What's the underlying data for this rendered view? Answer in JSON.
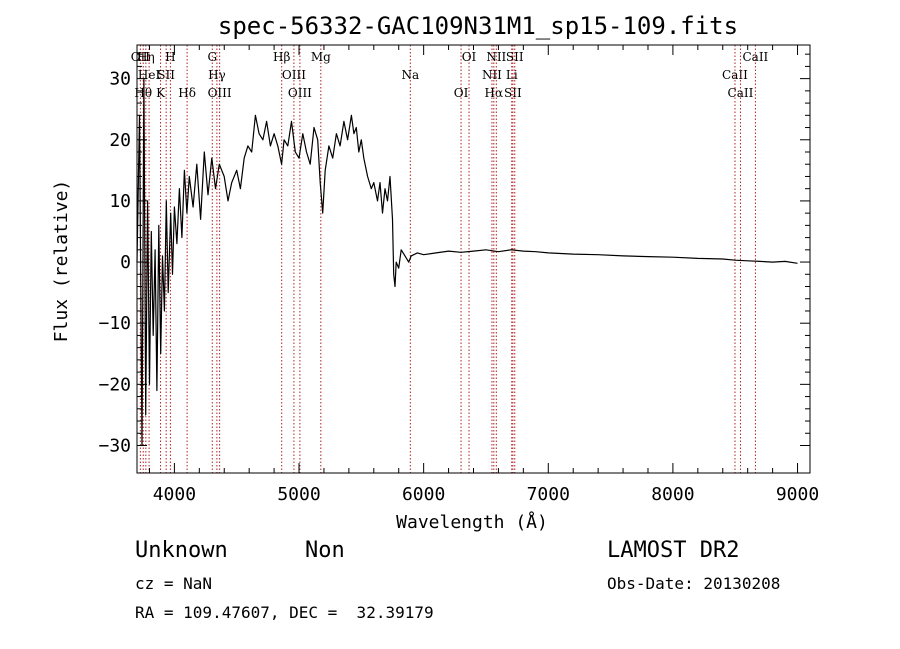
{
  "chart_data": {
    "type": "line",
    "title": "spec-56332-GAC109N31M1_sp15-109.fits",
    "xlabel": "Wavelength (Å)",
    "ylabel": "Flux (relative)",
    "xlim": [
      3700,
      9100
    ],
    "ylim": [
      -34.5,
      35.5
    ],
    "xticks": [
      4000,
      5000,
      6000,
      7000,
      8000,
      9000
    ],
    "yticks": [
      -30,
      -20,
      -10,
      0,
      10,
      20,
      30
    ],
    "grid": false,
    "series": [
      {
        "points": [
          [
            3700,
            0
          ],
          [
            3720,
            24
          ],
          [
            3740,
            -30
          ],
          [
            3755,
            30
          ],
          [
            3770,
            -25
          ],
          [
            3785,
            10
          ],
          [
            3800,
            -20
          ],
          [
            3815,
            5
          ],
          [
            3830,
            -12
          ],
          [
            3845,
            2
          ],
          [
            3860,
            -21
          ],
          [
            3875,
            6
          ],
          [
            3890,
            -15
          ],
          [
            3905,
            1
          ],
          [
            3920,
            -8
          ],
          [
            3935,
            10
          ],
          [
            3950,
            -5
          ],
          [
            3970,
            8
          ],
          [
            3985,
            -2
          ],
          [
            4000,
            9
          ],
          [
            4020,
            3
          ],
          [
            4040,
            12
          ],
          [
            4060,
            4
          ],
          [
            4080,
            15
          ],
          [
            4100,
            8
          ],
          [
            4120,
            14
          ],
          [
            4150,
            9
          ],
          [
            4180,
            16
          ],
          [
            4210,
            7
          ],
          [
            4240,
            18
          ],
          [
            4270,
            11
          ],
          [
            4300,
            17
          ],
          [
            4330,
            12
          ],
          [
            4360,
            16
          ],
          [
            4400,
            14
          ],
          [
            4430,
            10
          ],
          [
            4460,
            13
          ],
          [
            4500,
            15
          ],
          [
            4530,
            12
          ],
          [
            4560,
            17
          ],
          [
            4590,
            19
          ],
          [
            4620,
            18
          ],
          [
            4650,
            24
          ],
          [
            4680,
            21
          ],
          [
            4710,
            20
          ],
          [
            4740,
            23
          ],
          [
            4770,
            19
          ],
          [
            4800,
            21
          ],
          [
            4830,
            19
          ],
          [
            4860,
            16
          ],
          [
            4880,
            20
          ],
          [
            4910,
            19
          ],
          [
            4940,
            23
          ],
          [
            4970,
            18
          ],
          [
            5000,
            17
          ],
          [
            5030,
            21
          ],
          [
            5060,
            18
          ],
          [
            5090,
            16
          ],
          [
            5120,
            22
          ],
          [
            5150,
            20
          ],
          [
            5170,
            13
          ],
          [
            5190,
            8
          ],
          [
            5210,
            15
          ],
          [
            5240,
            19
          ],
          [
            5270,
            17
          ],
          [
            5300,
            21
          ],
          [
            5330,
            19
          ],
          [
            5360,
            23
          ],
          [
            5390,
            20
          ],
          [
            5420,
            24
          ],
          [
            5440,
            21
          ],
          [
            5460,
            22
          ],
          [
            5480,
            18
          ],
          [
            5500,
            20
          ],
          [
            5520,
            17
          ],
          [
            5550,
            14
          ],
          [
            5580,
            12
          ],
          [
            5600,
            13
          ],
          [
            5630,
            10
          ],
          [
            5650,
            13
          ],
          [
            5670,
            8
          ],
          [
            5690,
            12
          ],
          [
            5710,
            10
          ],
          [
            5730,
            14
          ],
          [
            5750,
            7
          ],
          [
            5760,
            -2
          ],
          [
            5770,
            -4
          ],
          [
            5780,
            0
          ],
          [
            5800,
            -1
          ],
          [
            5820,
            2
          ],
          [
            5850,
            1
          ],
          [
            5880,
            0
          ],
          [
            5900,
            1
          ],
          [
            5950,
            1.5
          ],
          [
            6000,
            1.2
          ],
          [
            6100,
            1.5
          ],
          [
            6200,
            1.8
          ],
          [
            6300,
            1.6
          ],
          [
            6400,
            1.8
          ],
          [
            6500,
            2.0
          ],
          [
            6600,
            1.7
          ],
          [
            6700,
            2.0
          ],
          [
            6800,
            1.8
          ],
          [
            6900,
            1.7
          ],
          [
            7000,
            1.5
          ],
          [
            7200,
            1.3
          ],
          [
            7400,
            1.2
          ],
          [
            7600,
            1.0
          ],
          [
            7800,
            0.9
          ],
          [
            8000,
            0.8
          ],
          [
            8200,
            0.6
          ],
          [
            8400,
            0.5
          ],
          [
            8500,
            0.3
          ],
          [
            8600,
            0.2
          ],
          [
            8700,
            0.1
          ],
          [
            8800,
            0.0
          ],
          [
            8900,
            0.1
          ],
          [
            9000,
            -0.2
          ]
        ]
      }
    ],
    "lines": [
      {
        "wave": 3727,
        "label": "OII",
        "tier": 0
      },
      {
        "wave": 3750,
        "label": "Hθ",
        "tier": 2
      },
      {
        "wave": 3771,
        "label": "Hη",
        "tier": 0
      },
      {
        "wave": 3797,
        "label": "HeI",
        "tier": 1
      },
      {
        "wave": 3889,
        "label": "K",
        "tier": 2
      },
      {
        "wave": 3934,
        "label": "SII",
        "tier": 1
      },
      {
        "wave": 3968,
        "label": "H",
        "tier": 0
      },
      {
        "wave": 4102,
        "label": "Hδ",
        "tier": 2
      },
      {
        "wave": 4304,
        "label": "G",
        "tier": 0
      },
      {
        "wave": 4341,
        "label": "Hγ",
        "tier": 1
      },
      {
        "wave": 4363,
        "label": "OIII",
        "tier": 2
      },
      {
        "wave": 4861,
        "label": "Hβ",
        "tier": 0
      },
      {
        "wave": 4959,
        "label": "OIII",
        "tier": 1
      },
      {
        "wave": 5007,
        "label": "OIII",
        "tier": 2
      },
      {
        "wave": 5175,
        "label": "Mg",
        "tier": 0
      },
      {
        "wave": 5893,
        "label": "Na",
        "tier": 1
      },
      {
        "wave": 6300,
        "label": "OI",
        "tier": 2
      },
      {
        "wave": 6364,
        "label": "OI",
        "tier": 0
      },
      {
        "wave": 6548,
        "label": "NII",
        "tier": 1
      },
      {
        "wave": 6563,
        "label": "Hα",
        "tier": 2
      },
      {
        "wave": 6583,
        "label": "NII",
        "tier": 0
      },
      {
        "wave": 6707,
        "label": "Li",
        "tier": 1
      },
      {
        "wave": 6716,
        "label": "SII",
        "tier": 2
      },
      {
        "wave": 6731,
        "label": "SII",
        "tier": 0
      },
      {
        "wave": 8498,
        "label": "CaII",
        "tier": 1
      },
      {
        "wave": 8542,
        "label": "CaII",
        "tier": 2
      },
      {
        "wave": 8662,
        "label": "CaII",
        "tier": 0
      }
    ]
  },
  "info": {
    "object_class": "Unknown",
    "object_subclass": "Non",
    "survey": "LAMOST DR2",
    "redshift": "cz = NaN",
    "obs_date": "Obs-Date: 20130208",
    "coords": "RA = 109.47607, DEC =  32.39179"
  }
}
